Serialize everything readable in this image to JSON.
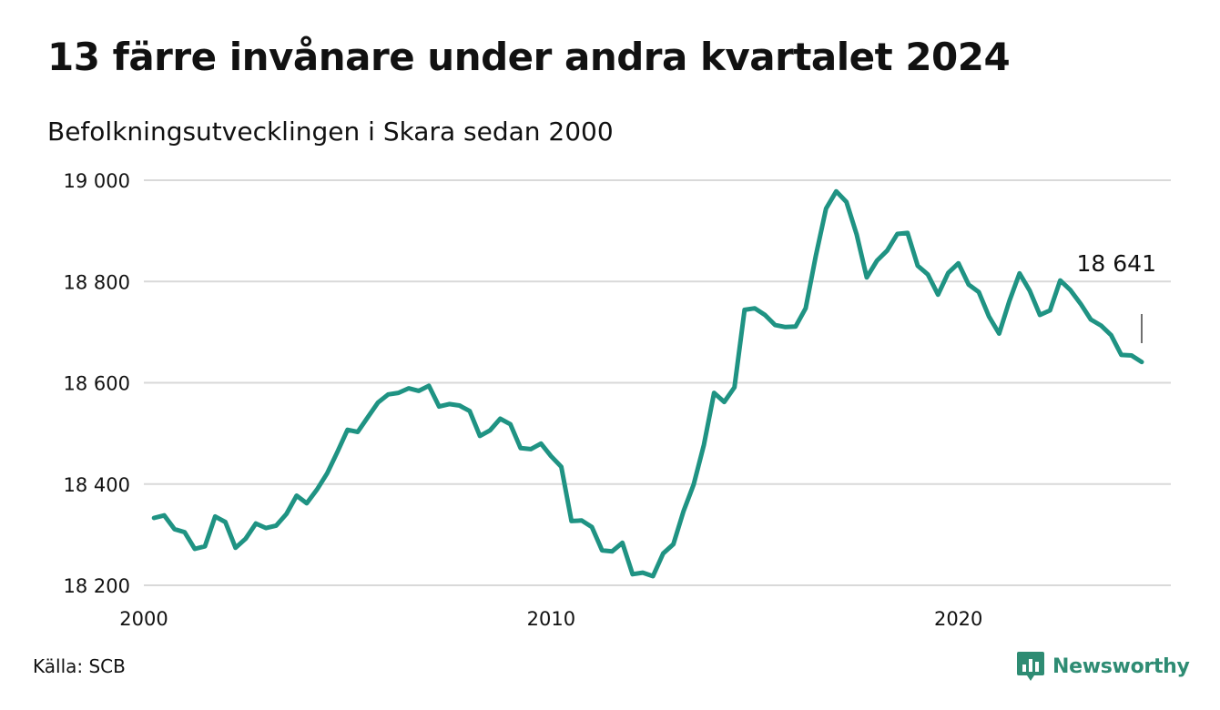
{
  "title": "13 färre invånare under andra kvartalet 2024",
  "subtitle": "Befolkningsutvecklingen i Skara sedan 2000",
  "source": "Källa: SCB",
  "brand": {
    "name": "Newsworthy",
    "logo_icon": "bar-chart-icon",
    "color": "#2e8c73"
  },
  "colors": {
    "line": "#1f9383",
    "grid": "#d9d9d9",
    "text": "#111111"
  },
  "chart_data": {
    "type": "line",
    "title": "13 färre invånare under andra kvartalet 2024",
    "subtitle": "Befolkningsutvecklingen i Skara sedan 2000",
    "xlabel": "",
    "ylabel": "",
    "xlim": [
      2000,
      2024.5
    ],
    "ylim": [
      18200,
      19000
    ],
    "y_ticks": [
      {
        "value": 19000,
        "label": "19 000"
      },
      {
        "value": 18800,
        "label": "18 800"
      },
      {
        "value": 18600,
        "label": "18 600"
      },
      {
        "value": 18400,
        "label": "18 400"
      },
      {
        "value": 18200,
        "label": "18 200"
      }
    ],
    "x_ticks": [
      {
        "value": 2000,
        "label": "2000"
      },
      {
        "value": 2010,
        "label": "2010"
      },
      {
        "value": 2020,
        "label": "2020"
      }
    ],
    "grid": true,
    "legend": "none",
    "annotation": {
      "label": "18 641",
      "x": 2024.5,
      "y": 18641
    },
    "series": [
      {
        "x": [
          2000.25,
          2000.5,
          2000.75,
          2001.0,
          2001.25,
          2001.5,
          2001.75,
          2002.0,
          2002.25,
          2002.5,
          2002.75,
          2003.0,
          2003.25,
          2003.5,
          2003.75,
          2004.0,
          2004.25,
          2004.5,
          2004.75,
          2005.0,
          2005.25,
          2005.5,
          2005.75,
          2006.0,
          2006.25,
          2006.5,
          2006.75,
          2007.0,
          2007.25,
          2007.5,
          2007.75,
          2008.0,
          2008.25,
          2008.5,
          2008.75,
          2009.0,
          2009.25,
          2009.5,
          2009.75,
          2010.0,
          2010.25,
          2010.5,
          2010.75,
          2011.0,
          2011.25,
          2011.5,
          2011.75,
          2012.0,
          2012.25,
          2012.5,
          2012.75,
          2013.0,
          2013.25,
          2013.5,
          2013.75,
          2014.0,
          2014.25,
          2014.5,
          2014.75,
          2015.0,
          2015.25,
          2015.5,
          2015.75,
          2016.0,
          2016.25,
          2016.5,
          2016.75,
          2017.0,
          2017.25,
          2017.5,
          2017.75,
          2018.0,
          2018.25,
          2018.5,
          2018.75,
          2019.0,
          2019.25,
          2019.5,
          2019.75,
          2020.0,
          2020.25,
          2020.5,
          2020.75,
          2021.0,
          2021.25,
          2021.5,
          2021.75,
          2022.0,
          2022.25,
          2022.5,
          2022.75,
          2023.0,
          2023.25,
          2023.5,
          2023.75,
          2024.0,
          2024.25,
          2024.5
        ],
        "values": [
          18333,
          18338,
          18311,
          18305,
          18272,
          18277,
          18336,
          18325,
          18274,
          18292,
          18322,
          18313,
          18318,
          18341,
          18377,
          18362,
          18389,
          18421,
          18463,
          18507,
          18503,
          18532,
          18561,
          18577,
          18580,
          18589,
          18584,
          18594,
          18553,
          18558,
          18555,
          18544,
          18495,
          18506,
          18529,
          18518,
          18471,
          18469,
          18480,
          18455,
          18434,
          18327,
          18328,
          18315,
          18269,
          18267,
          18284,
          18222,
          18225,
          18218,
          18263,
          18281,
          18346,
          18399,
          18477,
          18580,
          18562,
          18591,
          18744,
          18747,
          18734,
          18714,
          18710,
          18711,
          18747,
          18851,
          18944,
          18978,
          18957,
          18893,
          18808,
          18841,
          18861,
          18894,
          18896,
          18831,
          18814,
          18774,
          18817,
          18836,
          18794,
          18779,
          18731,
          18697,
          18761,
          18816,
          18782,
          18734,
          18743,
          18802,
          18783,
          18756,
          18725,
          18713,
          18694,
          18655,
          18654,
          18641
        ]
      }
    ]
  }
}
